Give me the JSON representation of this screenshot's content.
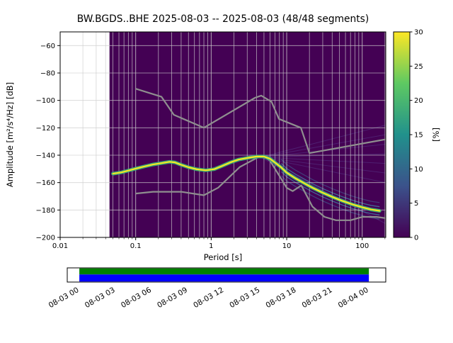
{
  "title": "BW.BGDS..BHE   2025-08-03 -- 2025-08-03  (48/48 segments)",
  "chart_data": {
    "type": "heatmap",
    "title": "BW.BGDS..BHE   2025-08-03 -- 2025-08-03  (48/48 segments)",
    "xlabel": "Period [s]",
    "ylabel": "Amplitude [m²/s⁴/Hz] [dB]",
    "colorbar_label": "[%]",
    "x_scale": "log",
    "xlim": [
      0.01,
      205
    ],
    "ylim": [
      -200,
      -50
    ],
    "grid": true,
    "x_ticks": [
      0.01,
      0.1,
      1,
      10,
      100
    ],
    "x_tick_labels": [
      "0.01",
      "0.1",
      "1",
      "10",
      "100"
    ],
    "y_ticks": [
      -60,
      -80,
      -100,
      -120,
      -140,
      -160,
      -180,
      -200
    ],
    "y_tick_labels": [
      "−60",
      "−80",
      "−100",
      "−120",
      "−140",
      "−160",
      "−180",
      "−200"
    ],
    "background_color": "#440154",
    "data_period_range": [
      0.045,
      205
    ],
    "colorbar": {
      "min": 0,
      "max": 30,
      "ticks": [
        0,
        5,
        10,
        15,
        20,
        25,
        30
      ],
      "colors": [
        "#440154",
        "#3b528b",
        "#21918c",
        "#5ec962",
        "#fde725"
      ]
    },
    "noise_models": {
      "nhnm": [
        [
          0.1,
          -91.5
        ],
        [
          0.22,
          -97.4
        ],
        [
          0.32,
          -110.5
        ],
        [
          0.8,
          -120.0
        ],
        [
          3.8,
          -98.1
        ],
        [
          4.6,
          -96.5
        ],
        [
          6.3,
          -101.0
        ],
        [
          7.9,
          -113.5
        ],
        [
          15.4,
          -120.0
        ],
        [
          20.0,
          -138.5
        ],
        [
          205.0,
          -128.4
        ]
      ],
      "nlnm": [
        [
          0.1,
          -168.0
        ],
        [
          0.17,
          -166.7
        ],
        [
          0.4,
          -166.7
        ],
        [
          0.8,
          -169.2
        ],
        [
          1.24,
          -163.7
        ],
        [
          2.4,
          -148.6
        ],
        [
          4.3,
          -141.1
        ],
        [
          5.0,
          -141.1
        ],
        [
          6.0,
          -144.0
        ],
        [
          10.0,
          -163.8
        ],
        [
          12.0,
          -166.2
        ],
        [
          15.6,
          -162.1
        ],
        [
          21.9,
          -177.5
        ],
        [
          31.6,
          -185.0
        ],
        [
          45.0,
          -187.5
        ],
        [
          70.0,
          -187.5
        ],
        [
          101.0,
          -185.0
        ],
        [
          154.0,
          -185.0
        ],
        [
          205.0,
          -186.0
        ]
      ]
    },
    "mode_curve": [
      [
        0.05,
        -153.5
      ],
      [
        0.065,
        -152.5
      ],
      [
        0.08,
        -151.2
      ],
      [
        0.1,
        -149.8
      ],
      [
        0.13,
        -148.2
      ],
      [
        0.17,
        -146.8
      ],
      [
        0.22,
        -145.8
      ],
      [
        0.28,
        -144.8
      ],
      [
        0.33,
        -145.2
      ],
      [
        0.4,
        -147.0
      ],
      [
        0.5,
        -148.8
      ],
      [
        0.65,
        -150.3
      ],
      [
        0.85,
        -151.0
      ],
      [
        1.1,
        -150.2
      ],
      [
        1.4,
        -147.8
      ],
      [
        1.8,
        -145.2
      ],
      [
        2.3,
        -143.2
      ],
      [
        3.0,
        -142.0
      ],
      [
        4.0,
        -141.0
      ],
      [
        5.0,
        -141.0
      ],
      [
        6.0,
        -142.6
      ],
      [
        7.0,
        -145.4
      ],
      [
        8.5,
        -149.0
      ],
      [
        10.0,
        -152.8
      ],
      [
        13.0,
        -156.8
      ],
      [
        17.0,
        -160.4
      ],
      [
        22.0,
        -163.8
      ],
      [
        30.0,
        -167.4
      ],
      [
        40.0,
        -170.4
      ],
      [
        55.0,
        -173.4
      ],
      [
        75.0,
        -176.0
      ],
      [
        100.0,
        -178.0
      ],
      [
        130.0,
        -179.6
      ],
      [
        170.0,
        -180.6
      ]
    ],
    "spread_fan": {
      "origin": [
        4.5,
        -141.5
      ],
      "end_period": 205,
      "faint_end_db": [
        -118,
        -125,
        -132,
        -139,
        -146,
        -153,
        -160,
        -190
      ]
    },
    "availability": {
      "labels": [
        "08-03 00",
        "08-03 03",
        "08-03 06",
        "08-03 09",
        "08-03 12",
        "08-03 15",
        "08-03 18",
        "08-03 21",
        "08-04 00"
      ],
      "coverage": [
        0.038,
        0.947
      ],
      "bar_colors": {
        "top": "#008000",
        "bottom": "#0000ff",
        "no_data": "#ffffff"
      }
    }
  }
}
